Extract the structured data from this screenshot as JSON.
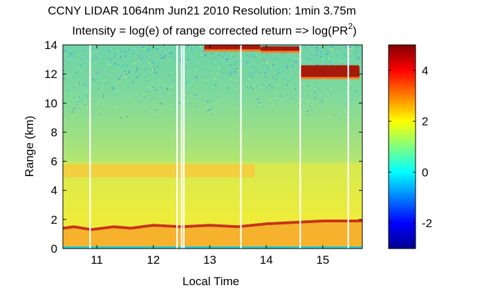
{
  "chart_data": {
    "type": "heatmap",
    "title": "CCNY LIDAR 1064nm Jun21 2010 Resolution: 1min 3.75m",
    "subtitle_prefix": "Intensity = log(e) of range corrected return => log(PR",
    "subtitle_sup": "2",
    "subtitle_suffix": ")",
    "xlabel": "Local Time",
    "ylabel": "Range (km)",
    "xlim": [
      10.4,
      15.7
    ],
    "ylim": [
      0,
      14
    ],
    "xticks": [
      11,
      12,
      13,
      14,
      15
    ],
    "yticks": [
      0,
      2,
      4,
      6,
      8,
      10,
      12,
      14
    ],
    "colorbar": {
      "colormap": "jet",
      "clim": [
        -3,
        5
      ],
      "ticks": [
        -2,
        0,
        2,
        4
      ]
    },
    "features": {
      "boundary_layer_top_km": [
        [
          10.4,
          1.4
        ],
        [
          10.6,
          1.5
        ],
        [
          10.9,
          1.3
        ],
        [
          11.3,
          1.5
        ],
        [
          11.6,
          1.4
        ],
        [
          12.0,
          1.6
        ],
        [
          12.5,
          1.5
        ],
        [
          13.0,
          1.6
        ],
        [
          13.5,
          1.5
        ],
        [
          14.0,
          1.7
        ],
        [
          14.5,
          1.8
        ],
        [
          15.0,
          1.9
        ],
        [
          15.7,
          1.9
        ]
      ],
      "aerosol_layer_km": {
        "x_start": 10.4,
        "x_end": 13.8,
        "bottom": 4.9,
        "top": 5.8
      },
      "cirrus_clouds": [
        {
          "x_start": 12.9,
          "x_end": 13.9,
          "bottom": 13.6,
          "top": 14.0
        },
        {
          "x_start": 13.9,
          "x_end": 14.6,
          "bottom": 13.5,
          "top": 13.9
        },
        {
          "x_start": 14.6,
          "x_end": 15.65,
          "bottom": 11.7,
          "top": 12.6
        }
      ],
      "data_gaps_hours": [
        10.88,
        12.42,
        12.5,
        12.54,
        13.55,
        14.6,
        15.45
      ]
    }
  }
}
